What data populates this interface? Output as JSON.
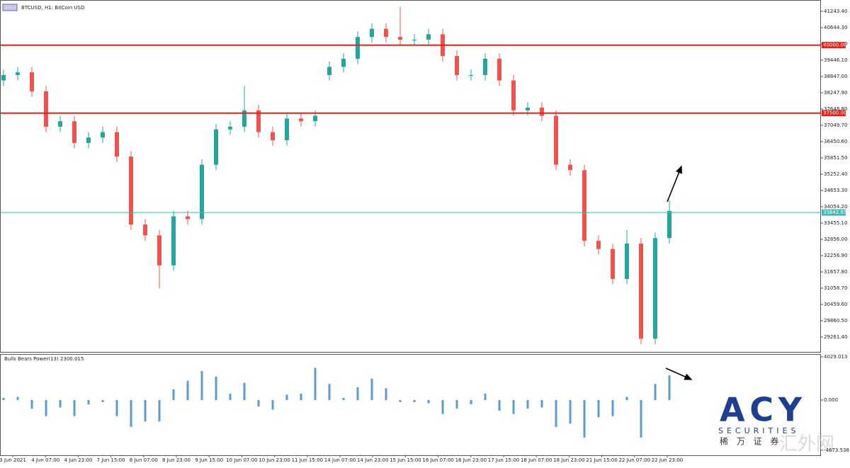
{
  "header": {
    "title": "BTCUSD, H1:  BitCoin USD"
  },
  "chart_data": {
    "type": "candlestick",
    "open": [
      38700,
      38900,
      39000,
      38300,
      37000,
      37200,
      36400,
      36600,
      36800,
      35900,
      33400,
      33000,
      31900,
      33700,
      33600,
      35600,
      36900,
      37000,
      37600,
      36800,
      36500,
      37300,
      37200,
      38900,
      39200,
      39500,
      40300,
      40600,
      40300,
      40200,
      40200,
      40400,
      39600,
      38900,
      38900,
      39500,
      38700,
      37600,
      37700,
      37400,
      35600,
      35400,
      32800,
      32500,
      31400,
      32700,
      29200,
      32900
    ],
    "high": [
      39100,
      39200,
      39200,
      38500,
      37400,
      37400,
      36800,
      37000,
      37000,
      36100,
      33600,
      33200,
      33900,
      33900,
      35800,
      37100,
      37200,
      38500,
      37800,
      37000,
      37500,
      37500,
      37600,
      39400,
      39700,
      40500,
      40800,
      40800,
      41400,
      40400,
      40600,
      40600,
      39800,
      39100,
      39700,
      39700,
      38900,
      37900,
      37900,
      37600,
      35800,
      35600,
      33000,
      32700,
      33200,
      32900,
      33100,
      34300
    ],
    "low": [
      38500,
      38700,
      38100,
      36800,
      36800,
      36200,
      36200,
      36400,
      35700,
      33200,
      32800,
      31050,
      31700,
      33400,
      33400,
      35400,
      36700,
      36800,
      36600,
      36300,
      36300,
      37000,
      37000,
      38700,
      39000,
      39300,
      40100,
      40100,
      40000,
      40000,
      40000,
      39400,
      38700,
      38700,
      38700,
      38500,
      37400,
      37400,
      37200,
      35400,
      35200,
      32600,
      32300,
      31200,
      31200,
      29000,
      29000,
      32700
    ],
    "close": [
      38900,
      39000,
      38300,
      37000,
      37200,
      36400,
      36600,
      36800,
      35900,
      33400,
      33000,
      31900,
      33700,
      33600,
      35600,
      36900,
      37000,
      37600,
      36800,
      36500,
      37300,
      37200,
      37400,
      39200,
      39500,
      40300,
      40600,
      40300,
      40200,
      40200,
      40400,
      39600,
      38900,
      38900,
      39500,
      38700,
      37600,
      37700,
      37400,
      35600,
      35400,
      32800,
      32500,
      31400,
      32700,
      29200,
      32900,
      33900
    ],
    "up_color": "#26a69a",
    "down_color": "#ef5350",
    "ylim": [
      28714,
      41660
    ],
    "yticks": [
      {
        "value": 41243.4,
        "label": "41243.40"
      },
      {
        "value": 40644.3,
        "label": "40644.30"
      },
      {
        "value": 40045.2,
        "label": "40045.20"
      },
      {
        "value": 39446.1,
        "label": "39446.10"
      },
      {
        "value": 38847,
        "label": "38847.00"
      },
      {
        "value": 38247.9,
        "label": "38247.90"
      },
      {
        "value": 37648.8,
        "label": "37648.80"
      },
      {
        "value": 37049.7,
        "label": "37049.70"
      },
      {
        "value": 36450.6,
        "label": "36450.60"
      },
      {
        "value": 35851.5,
        "label": "35851.50"
      },
      {
        "value": 35252.4,
        "label": "35252.40"
      },
      {
        "value": 34653.3,
        "label": "34653.30"
      },
      {
        "value": 34054.2,
        "label": "34054.20"
      },
      {
        "value": 33455.1,
        "label": "33455.10"
      },
      {
        "value": 32856,
        "label": "32856.00"
      },
      {
        "value": 32256.9,
        "label": "32256.90"
      },
      {
        "value": 31657.8,
        "label": "31657.80"
      },
      {
        "value": 31058.7,
        "label": "31058.70"
      },
      {
        "value": 30459.6,
        "label": "30459.60"
      },
      {
        "value": 29860.5,
        "label": "29860.50"
      },
      {
        "value": 29261.4,
        "label": "29261.40"
      }
    ],
    "levels": [
      {
        "value": 40000,
        "label": "40000.00",
        "color": "#e8201a"
      },
      {
        "value": 37500,
        "label": "37500.00",
        "color": "#e8201a"
      },
      {
        "value": 33842.65,
        "label": "33842.65",
        "color": "#4bb3b0"
      }
    ],
    "x_labels": [
      "3 Jun 2021",
      "4 Jun 07:00",
      "4 Jun 23:00",
      "7 Jun 15:00",
      "8 Jun 07:00",
      "8 Jun 23:00",
      "9 Jun 15:00",
      "10 Jun 07:00",
      "10 Jun 23:00",
      "11 Jun 15:00",
      "14 Jun 07:00",
      "14 Jun 23:00",
      "15 Jun 15:00",
      "16 Jun 07:00",
      "16 Jun 23:00",
      "17 Jun 15:00",
      "18 Jun 07:00",
      "18 Jun 23:00",
      "21 Jun 15:00",
      "22 Jun 07:00",
      "22 Jun 23:00"
    ]
  },
  "indicator": {
    "type": "bar",
    "title": "Bulls Bears Power(13) 2300.015",
    "color": "#5b9bd5",
    "values": [
      200,
      300,
      -800,
      -1500,
      -700,
      -1500,
      -400,
      -200,
      -1500,
      -2500,
      -2000,
      -2000,
      1000,
      1800,
      2700,
      2200,
      600,
      1600,
      -600,
      -900,
      500,
      600,
      3000,
      1500,
      200,
      1200,
      2000,
      1100,
      -200,
      -200,
      -300,
      -1300,
      -800,
      -400,
      600,
      -1000,
      -1300,
      -800,
      -700,
      -2500,
      -2200,
      -3500,
      -1600,
      -1500,
      300,
      -3500,
      1500,
      2300
    ],
    "ylim": [
      -5150,
      4293
    ],
    "yticks": [
      {
        "value": 4029.013,
        "label": "4029.013"
      },
      {
        "value": 0,
        "label": "0.000"
      },
      {
        "value": -4673.538,
        "label": "-4673.538"
      }
    ]
  },
  "logo": {
    "brand": "ACY",
    "sub": "SECURITIES",
    "cn": "稀 万 证 券"
  },
  "watermark": "汇外网"
}
